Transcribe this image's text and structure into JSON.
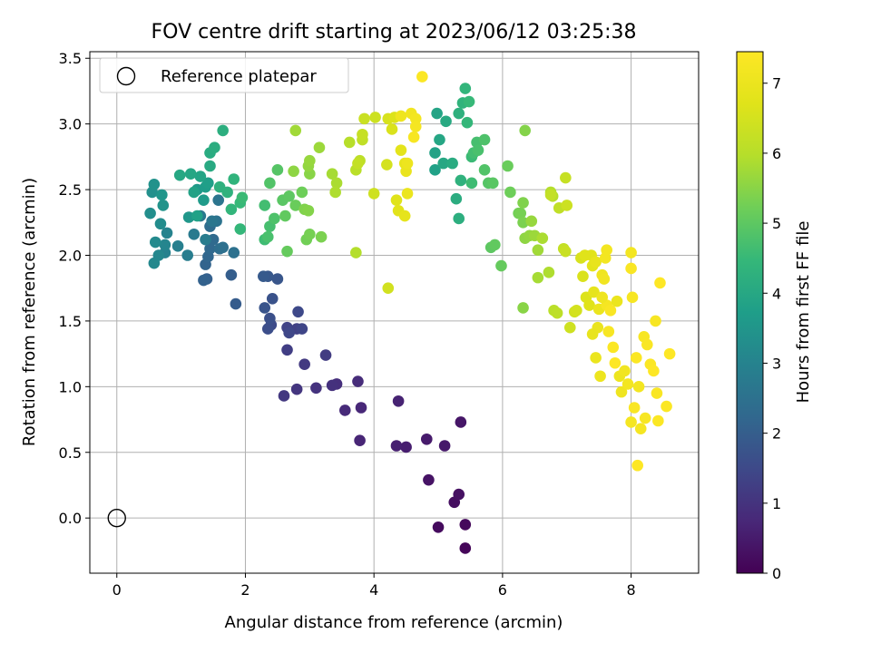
{
  "chart_data": {
    "type": "scatter",
    "title": "FOV centre drift starting at 2023/06/12 03:25:38",
    "xlabel": "Angular distance from reference (arcmin)",
    "ylabel": "Rotation from reference (arcmin)",
    "xlim": [
      -0.42,
      9.05
    ],
    "ylim": [
      -0.42,
      3.55
    ],
    "xticks": [
      0,
      2,
      4,
      6,
      8
    ],
    "yticks": [
      0.0,
      0.5,
      1.0,
      1.5,
      2.0,
      2.5,
      3.0,
      3.5
    ],
    "xtick_labels": [
      "0",
      "2",
      "4",
      "6",
      "8"
    ],
    "ytick_labels": [
      "0.0",
      "0.5",
      "1.0",
      "1.5",
      "2.0",
      "2.5",
      "3.0",
      "3.5"
    ],
    "grid": true,
    "legend": {
      "position": "top-left",
      "entries": [
        "Reference platepar"
      ]
    },
    "reference_point": {
      "x": 0,
      "y": 0
    },
    "colorbar": {
      "label": "Hours from first FF file",
      "colormap": "viridis",
      "range": [
        0,
        7.45
      ],
      "ticks": [
        0,
        1,
        2,
        3,
        4,
        5,
        6,
        7
      ],
      "tick_labels": [
        "0",
        "1",
        "2",
        "3",
        "4",
        "5",
        "6",
        "7"
      ]
    },
    "point_fields": [
      "x",
      "y",
      "hours"
    ],
    "points": [
      [
        5.42,
        -0.23,
        0.1
      ],
      [
        5.42,
        -0.05,
        0.15
      ],
      [
        5.0,
        -0.07,
        0.2
      ],
      [
        5.25,
        0.12,
        0.25
      ],
      [
        5.32,
        0.18,
        0.3
      ],
      [
        4.85,
        0.29,
        0.35
      ],
      [
        5.35,
        0.73,
        0.4
      ],
      [
        5.1,
        0.55,
        0.45
      ],
      [
        4.82,
        0.6,
        0.5
      ],
      [
        4.5,
        0.54,
        0.55
      ],
      [
        4.35,
        0.55,
        0.6
      ],
      [
        4.38,
        0.89,
        0.65
      ],
      [
        3.78,
        0.59,
        0.7
      ],
      [
        3.8,
        0.84,
        0.75
      ],
      [
        3.55,
        0.82,
        0.8
      ],
      [
        3.75,
        1.04,
        0.85
      ],
      [
        3.42,
        1.02,
        0.9
      ],
      [
        3.35,
        1.01,
        0.95
      ],
      [
        3.1,
        0.99,
        1.0
      ],
      [
        2.8,
        0.98,
        1.05
      ],
      [
        2.6,
        0.93,
        1.1
      ],
      [
        2.92,
        1.17,
        1.15
      ],
      [
        3.25,
        1.24,
        1.2
      ],
      [
        2.65,
        1.28,
        1.25
      ],
      [
        2.8,
        1.44,
        1.3
      ],
      [
        2.65,
        1.45,
        1.35
      ],
      [
        2.88,
        1.44,
        1.4
      ],
      [
        2.68,
        1.41,
        1.45
      ],
      [
        2.82,
        1.57,
        1.5
      ],
      [
        2.4,
        1.47,
        1.55
      ],
      [
        2.35,
        1.44,
        1.6
      ],
      [
        2.38,
        1.52,
        1.65
      ],
      [
        2.42,
        1.67,
        1.7
      ],
      [
        2.3,
        1.6,
        1.75
      ],
      [
        2.5,
        1.82,
        1.8
      ],
      [
        2.35,
        1.84,
        1.85
      ],
      [
        2.28,
        1.84,
        1.9
      ],
      [
        1.85,
        1.63,
        1.95
      ],
      [
        1.78,
        1.85,
        2.0
      ],
      [
        1.4,
        1.82,
        2.05
      ],
      [
        1.35,
        1.81,
        2.1
      ],
      [
        1.38,
        1.93,
        2.15
      ],
      [
        1.42,
        1.99,
        2.2
      ],
      [
        1.45,
        2.05,
        2.25
      ],
      [
        1.5,
        2.12,
        2.3
      ],
      [
        1.45,
        2.22,
        2.35
      ],
      [
        1.6,
        2.05,
        2.4
      ],
      [
        1.65,
        2.06,
        2.45
      ],
      [
        1.82,
        2.02,
        2.5
      ],
      [
        1.55,
        2.26,
        2.55
      ],
      [
        1.58,
        2.42,
        2.6
      ],
      [
        1.48,
        2.26,
        2.65
      ],
      [
        1.3,
        2.3,
        2.7
      ],
      [
        1.2,
        2.16,
        2.75
      ],
      [
        1.38,
        2.12,
        2.8
      ],
      [
        1.1,
        2.0,
        2.85
      ],
      [
        0.95,
        2.07,
        2.9
      ],
      [
        0.75,
        2.02,
        2.95
      ],
      [
        0.78,
        2.17,
        3.0
      ],
      [
        0.75,
        2.08,
        3.05
      ],
      [
        0.65,
        2.0,
        3.1
      ],
      [
        0.58,
        1.94,
        3.15
      ],
      [
        0.6,
        2.1,
        3.2
      ],
      [
        0.68,
        2.24,
        3.25
      ],
      [
        0.52,
        2.32,
        3.3
      ],
      [
        0.55,
        2.48,
        3.35
      ],
      [
        0.58,
        2.54,
        3.4
      ],
      [
        0.72,
        2.38,
        3.45
      ],
      [
        0.7,
        2.46,
        3.5
      ],
      [
        1.12,
        2.29,
        3.55
      ],
      [
        1.25,
        2.5,
        3.6
      ],
      [
        1.35,
        2.42,
        3.65
      ],
      [
        1.38,
        2.52,
        3.7
      ],
      [
        1.42,
        2.55,
        3.75
      ],
      [
        1.25,
        2.3,
        3.8
      ],
      [
        1.2,
        2.48,
        3.85
      ],
      [
        1.3,
        2.6,
        3.9
      ],
      [
        1.15,
        2.62,
        3.95
      ],
      [
        0.98,
        2.61,
        4.0
      ],
      [
        1.45,
        2.68,
        4.05
      ],
      [
        1.45,
        2.78,
        4.1
      ],
      [
        1.52,
        2.82,
        4.15
      ],
      [
        1.65,
        2.95,
        4.2
      ],
      [
        1.6,
        2.52,
        4.25
      ],
      [
        1.72,
        2.48,
        4.3
      ],
      [
        1.82,
        2.58,
        4.35
      ],
      [
        1.78,
        2.35,
        4.4
      ],
      [
        1.92,
        2.2,
        4.45
      ],
      [
        1.92,
        2.4,
        4.5
      ],
      [
        1.95,
        2.44,
        4.55
      ],
      [
        2.3,
        2.12,
        4.6
      ],
      [
        2.3,
        2.38,
        4.65
      ],
      [
        2.38,
        2.22,
        4.7
      ],
      [
        2.35,
        2.14,
        4.75
      ],
      [
        2.45,
        2.28,
        4.8
      ],
      [
        2.38,
        2.55,
        4.85
      ],
      [
        2.5,
        2.65,
        4.9
      ],
      [
        2.58,
        2.42,
        4.95
      ],
      [
        2.68,
        2.45,
        5.0
      ],
      [
        2.62,
        2.3,
        5.05
      ],
      [
        2.65,
        2.03,
        5.1
      ],
      [
        2.78,
        2.38,
        5.15
      ],
      [
        2.88,
        2.48,
        5.2
      ],
      [
        2.95,
        2.12,
        5.25
      ],
      [
        3.0,
        2.16,
        5.3
      ],
      [
        3.18,
        2.14,
        5.35
      ],
      [
        2.92,
        2.35,
        5.4
      ],
      [
        2.98,
        2.34,
        5.45
      ],
      [
        3.0,
        2.62,
        5.5
      ],
      [
        2.75,
        2.64,
        5.55
      ],
      [
        2.98,
        2.68,
        5.6
      ],
      [
        3.0,
        2.72,
        5.65
      ],
      [
        3.15,
        2.82,
        5.7
      ],
      [
        2.78,
        2.95,
        5.75
      ],
      [
        3.35,
        2.62,
        5.8
      ],
      [
        3.42,
        2.55,
        5.85
      ],
      [
        3.4,
        2.48,
        5.9
      ],
      [
        3.72,
        2.02,
        5.95
      ],
      [
        3.62,
        2.86,
        6.0
      ],
      [
        3.72,
        2.65,
        6.05
      ],
      [
        3.78,
        2.72,
        6.1
      ],
      [
        3.82,
        2.88,
        6.15
      ],
      [
        3.75,
        2.7,
        6.2
      ],
      [
        3.82,
        2.92,
        6.25
      ],
      [
        3.85,
        3.04,
        6.3
      ],
      [
        4.02,
        3.05,
        6.35
      ],
      [
        4.0,
        2.47,
        6.4
      ],
      [
        4.22,
        1.75,
        6.45
      ],
      [
        4.2,
        2.69,
        6.5
      ],
      [
        4.22,
        3.04,
        6.55
      ],
      [
        4.28,
        2.96,
        6.6
      ],
      [
        4.32,
        3.05,
        6.65
      ],
      [
        4.35,
        2.42,
        6.7
      ],
      [
        4.38,
        2.34,
        6.75
      ],
      [
        4.42,
        2.8,
        6.8
      ],
      [
        4.48,
        2.3,
        6.85
      ],
      [
        4.48,
        2.7,
        6.9
      ],
      [
        4.5,
        2.64,
        6.95
      ],
      [
        4.52,
        2.47,
        7.0
      ],
      [
        4.52,
        2.7,
        7.05
      ],
      [
        4.42,
        3.06,
        7.1
      ],
      [
        4.58,
        3.08,
        7.15
      ],
      [
        4.65,
        3.04,
        7.2
      ],
      [
        4.65,
        2.98,
        7.25
      ],
      [
        4.62,
        2.9,
        7.3
      ],
      [
        4.75,
        3.36,
        7.4
      ],
      [
        4.95,
        2.65,
        3.8
      ],
      [
        4.95,
        2.78,
        3.85
      ],
      [
        4.98,
        3.08,
        3.9
      ],
      [
        5.02,
        2.88,
        3.95
      ],
      [
        5.08,
        2.7,
        4.0
      ],
      [
        5.12,
        3.02,
        4.05
      ],
      [
        5.22,
        2.7,
        4.1
      ],
      [
        5.28,
        2.43,
        4.15
      ],
      [
        5.32,
        2.28,
        4.2
      ],
      [
        5.32,
        3.08,
        4.25
      ],
      [
        5.35,
        2.57,
        4.3
      ],
      [
        5.38,
        3.16,
        4.35
      ],
      [
        5.42,
        3.27,
        4.4
      ],
      [
        5.45,
        3.01,
        4.45
      ],
      [
        5.48,
        3.17,
        4.5
      ],
      [
        5.52,
        2.75,
        4.55
      ],
      [
        5.52,
        2.55,
        4.6
      ],
      [
        5.55,
        2.78,
        4.65
      ],
      [
        5.6,
        2.86,
        4.7
      ],
      [
        5.62,
        2.8,
        4.75
      ],
      [
        5.72,
        2.88,
        4.8
      ],
      [
        5.72,
        2.65,
        4.85
      ],
      [
        5.78,
        2.55,
        4.9
      ],
      [
        5.85,
        2.55,
        4.95
      ],
      [
        5.82,
        2.06,
        5.0
      ],
      [
        5.88,
        2.08,
        5.05
      ],
      [
        5.98,
        1.92,
        5.1
      ],
      [
        6.08,
        2.68,
        5.15
      ],
      [
        6.12,
        2.48,
        5.2
      ],
      [
        6.25,
        2.32,
        5.25
      ],
      [
        6.28,
        2.32,
        5.3
      ],
      [
        6.32,
        2.25,
        5.35
      ],
      [
        6.32,
        2.4,
        5.4
      ],
      [
        6.35,
        2.95,
        5.45
      ],
      [
        6.32,
        1.6,
        5.5
      ],
      [
        6.35,
        2.13,
        5.55
      ],
      [
        6.42,
        2.15,
        5.6
      ],
      [
        6.45,
        2.26,
        5.65
      ],
      [
        6.5,
        2.15,
        5.7
      ],
      [
        6.55,
        2.04,
        5.75
      ],
      [
        6.55,
        1.83,
        5.8
      ],
      [
        6.62,
        2.13,
        5.85
      ],
      [
        6.72,
        1.87,
        5.9
      ],
      [
        6.75,
        2.48,
        5.95
      ],
      [
        6.78,
        2.45,
        6.0
      ],
      [
        6.8,
        1.58,
        6.05
      ],
      [
        6.85,
        1.56,
        6.1
      ],
      [
        6.88,
        2.36,
        6.15
      ],
      [
        6.95,
        2.05,
        6.2
      ],
      [
        6.98,
        2.59,
        6.25
      ],
      [
        6.98,
        2.03,
        6.3
      ],
      [
        7.0,
        2.38,
        6.35
      ],
      [
        7.05,
        1.45,
        6.4
      ],
      [
        7.12,
        1.57,
        6.45
      ],
      [
        7.15,
        1.58,
        6.5
      ],
      [
        7.22,
        1.98,
        6.55
      ],
      [
        7.25,
        1.84,
        6.6
      ],
      [
        7.3,
        1.68,
        6.65
      ],
      [
        7.35,
        1.62,
        6.7
      ],
      [
        7.38,
        2.0,
        6.75
      ],
      [
        7.4,
        1.92,
        6.8
      ],
      [
        7.42,
        1.72,
        6.85
      ],
      [
        7.45,
        1.95,
        6.9
      ],
      [
        7.48,
        1.45,
        6.95
      ],
      [
        7.5,
        1.59,
        7.0
      ],
      [
        7.52,
        1.08,
        7.05
      ],
      [
        7.55,
        1.85,
        7.1
      ],
      [
        7.58,
        1.82,
        7.15
      ],
      [
        7.6,
        1.98,
        7.2
      ],
      [
        7.62,
        1.62,
        7.25
      ],
      [
        7.65,
        1.42,
        7.3
      ],
      [
        7.68,
        1.58,
        7.35
      ],
      [
        7.72,
        1.3,
        7.4
      ],
      [
        7.75,
        1.18,
        7.45
      ],
      [
        7.78,
        1.65,
        7.0
      ],
      [
        7.82,
        1.08,
        7.05
      ],
      [
        7.85,
        0.96,
        7.1
      ],
      [
        7.9,
        1.12,
        7.15
      ],
      [
        7.95,
        1.02,
        7.2
      ],
      [
        8.0,
        0.73,
        7.25
      ],
      [
        8.02,
        1.68,
        7.3
      ],
      [
        8.05,
        0.84,
        7.35
      ],
      [
        8.08,
        1.22,
        7.4
      ],
      [
        8.1,
        0.4,
        7.45
      ],
      [
        8.12,
        1.0,
        7.2
      ],
      [
        8.15,
        0.68,
        7.25
      ],
      [
        8.2,
        1.38,
        7.3
      ],
      [
        8.25,
        1.32,
        7.35
      ],
      [
        8.3,
        1.17,
        7.4
      ],
      [
        8.35,
        1.12,
        7.45
      ],
      [
        8.38,
        1.5,
        7.3
      ],
      [
        8.4,
        0.95,
        7.35
      ],
      [
        8.42,
        0.74,
        7.4
      ],
      [
        8.45,
        1.79,
        7.45
      ],
      [
        8.55,
        0.85,
        7.4
      ],
      [
        8.6,
        1.25,
        7.45
      ],
      [
        8.22,
        0.76,
        7.3
      ],
      [
        8.0,
        2.02,
        7.2
      ],
      [
        7.55,
        1.68,
        7.1
      ],
      [
        7.45,
        1.22,
        7.0
      ],
      [
        7.4,
        1.4,
        6.9
      ],
      [
        6.75,
        2.46,
        6.2
      ],
      [
        7.28,
        2.0,
        6.7
      ],
      [
        7.62,
        2.04,
        7.2
      ],
      [
        8.0,
        1.9,
        7.35
      ]
    ]
  }
}
